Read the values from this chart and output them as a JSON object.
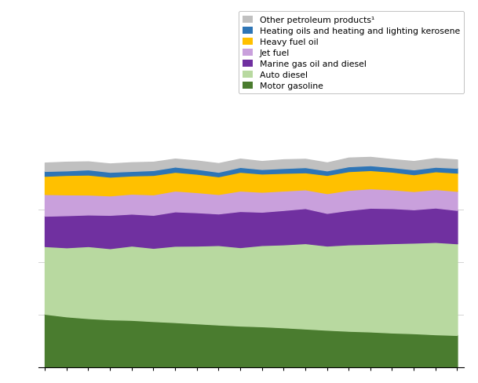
{
  "n_points": 20,
  "legend_labels": [
    "Other petroleum products¹",
    "Heating oils and heating and lighting kerosene",
    "Heavy fuel oil",
    "Jet fuel",
    "Marine gas oil and diesel",
    "Auto diesel",
    "Motor gasoline"
  ],
  "colors": [
    "#c0c0c0",
    "#2e75b6",
    "#ffc000",
    "#c9a0dc",
    "#7030a0",
    "#b8d9a0",
    "#4a7c2f"
  ],
  "motor_gasoline": [
    310,
    295,
    285,
    278,
    275,
    268,
    262,
    255,
    248,
    242,
    238,
    232,
    225,
    218,
    212,
    208,
    202,
    198,
    192,
    188
  ],
  "auto_diesel": [
    390,
    398,
    415,
    410,
    428,
    422,
    440,
    448,
    458,
    452,
    468,
    478,
    492,
    485,
    498,
    505,
    515,
    522,
    532,
    528
  ],
  "marine_gas_oil": [
    175,
    185,
    182,
    192,
    184,
    190,
    198,
    192,
    182,
    208,
    192,
    198,
    202,
    188,
    198,
    208,
    202,
    192,
    198,
    192
  ],
  "jet_fuel": [
    125,
    120,
    115,
    112,
    115,
    118,
    120,
    116,
    112,
    118,
    115,
    112,
    108,
    114,
    116,
    112,
    108,
    105,
    107,
    110
  ],
  "heavy_fuel_oil": [
    105,
    112,
    115,
    108,
    105,
    112,
    108,
    106,
    102,
    108,
    105,
    102,
    98,
    105,
    108,
    105,
    102,
    97,
    102,
    105
  ],
  "heating_oils": [
    28,
    26,
    30,
    28,
    26,
    28,
    30,
    28,
    26,
    28,
    26,
    28,
    30,
    26,
    28,
    28,
    26,
    28,
    26,
    28
  ],
  "other_petroleum": [
    48,
    50,
    46,
    48,
    50,
    48,
    46,
    48,
    50,
    48,
    46,
    50,
    48,
    46,
    50,
    48,
    46,
    48,
    50,
    48
  ],
  "background_color": "#ffffff",
  "grid_color": "#d4d4d4",
  "tick_color": "#000000",
  "figsize": [
    6.09,
    4.89
  ],
  "dpi": 100
}
